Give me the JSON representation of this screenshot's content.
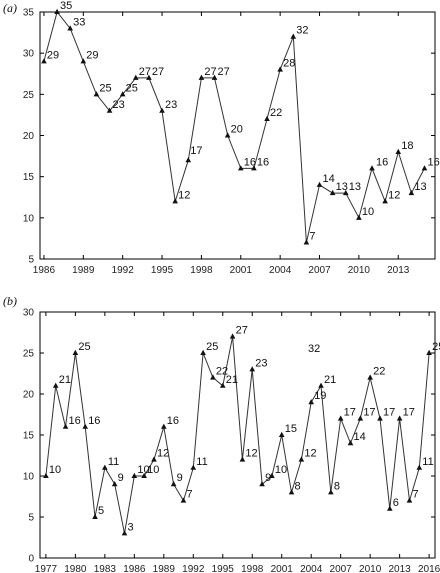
{
  "chart_data": [
    {
      "type": "line",
      "panel_label": "(a)",
      "x": [
        1986,
        1987,
        1988,
        1989,
        1990,
        1991,
        1992,
        1993,
        1994,
        1995,
        1996,
        1997,
        1998,
        1999,
        2000,
        2001,
        2002,
        2003,
        2004,
        2005,
        2006,
        2007,
        2008,
        2009,
        2010,
        2011,
        2012,
        2013,
        2014,
        2015
      ],
      "values": [
        29,
        35,
        33,
        29,
        25,
        23,
        25,
        27,
        27,
        23,
        12,
        17,
        27,
        27,
        20,
        16,
        16,
        22,
        28,
        32,
        7,
        14,
        13,
        13,
        10,
        16,
        12,
        18,
        13,
        16
      ],
      "xticks": [
        "1986",
        "1989",
        "1992",
        "1995",
        "1998",
        "2001",
        "2004",
        "2007",
        "2010",
        "2013"
      ],
      "yticks": [
        "5",
        "10",
        "15",
        "20",
        "25",
        "30",
        "35"
      ],
      "xlim": [
        1985.7,
        2015.8
      ],
      "ylim": [
        5,
        35
      ],
      "title": "",
      "xlabel": "",
      "ylabel": "",
      "grid": false
    },
    {
      "type": "line",
      "panel_label": "(b)",
      "x": [
        1977,
        1978,
        1979,
        1980,
        1981,
        1982,
        1983,
        1984,
        1985,
        1986,
        1987,
        1988,
        1989,
        1990,
        1991,
        1992,
        1993,
        1994,
        1995,
        1996,
        1997,
        1998,
        1999,
        2000,
        2001,
        2002,
        2003,
        2004,
        2005,
        2006,
        2007,
        2008,
        2009,
        2010,
        2011,
        2012,
        2013,
        2014,
        2015,
        2016
      ],
      "values": [
        10,
        21,
        16,
        25,
        16,
        5,
        11,
        9,
        3,
        10,
        10,
        12,
        16,
        9,
        7,
        11,
        25,
        22,
        21,
        27,
        12,
        23,
        9,
        10,
        15,
        8,
        12,
        19,
        21,
        8,
        17,
        14,
        17,
        22,
        17,
        6,
        17,
        7,
        11,
        25
      ],
      "extra_label": "32",
      "xticks": [
        "1977",
        "1980",
        "1983",
        "1986",
        "1989",
        "1992",
        "1995",
        "1998",
        "2001",
        "2004",
        "2007",
        "2010",
        "2013",
        "2016"
      ],
      "yticks": [
        "0",
        "5",
        "10",
        "15",
        "20",
        "25",
        "30"
      ],
      "xlim": [
        1976.4,
        2016.6
      ],
      "ylim": [
        0,
        30
      ],
      "title": "",
      "xlabel": "",
      "ylabel": "",
      "grid": false
    }
  ]
}
